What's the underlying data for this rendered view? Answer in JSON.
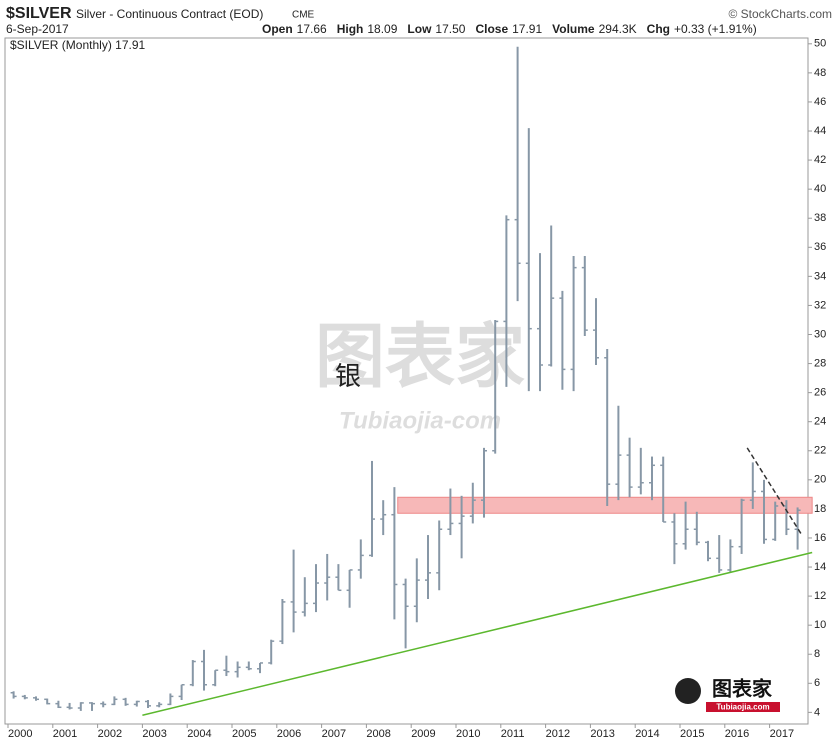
{
  "chart_data": {
    "type": "ohlc",
    "symbol": "$SILVER",
    "title": "Silver - Continuous Contract (EOD)",
    "exchange": "CME",
    "source": "© StockCharts.com",
    "date": "6-Sep-2017",
    "quote": [
      {
        "label": "Open",
        "value": "17.66"
      },
      {
        "label": "High",
        "value": "18.09"
      },
      {
        "label": "Low",
        "value": "17.50"
      },
      {
        "label": "Close",
        "value": "17.91"
      },
      {
        "label": "Volume",
        "value": "294.3K"
      },
      {
        "label": "Chg",
        "value": "+0.33 (+1.91%)"
      }
    ],
    "legend": "$SILVER (Monthly) 17.91",
    "annotation": "银",
    "color": "#8797a6",
    "categories": [
      "2000",
      null,
      null,
      null,
      "2001",
      null,
      null,
      null,
      "2002",
      null,
      null,
      null,
      "2003",
      null,
      null,
      null,
      "2004",
      null,
      null,
      null,
      "2005",
      null,
      null,
      null,
      "2006",
      null,
      null,
      null,
      "2007",
      null,
      null,
      null,
      "2008",
      null,
      null,
      null,
      "2009",
      null,
      null,
      null,
      "2010",
      null,
      null,
      null,
      "2011",
      null,
      null,
      null,
      "2012",
      null,
      null,
      null,
      "2013",
      null,
      null,
      null,
      "2014",
      null,
      null,
      null,
      "2015",
      null,
      null,
      null,
      "2016",
      null,
      null,
      null,
      "2017",
      null,
      null
    ],
    "open": [
      5.35,
      5.1,
      5.0,
      4.9,
      4.6,
      4.35,
      4.3,
      4.65,
      4.6,
      4.55,
      4.9,
      4.55,
      4.75,
      4.45,
      4.55,
      5.1,
      5.9,
      7.5,
      5.9,
      6.9,
      6.8,
      7.1,
      7.0,
      7.4,
      8.9,
      11.6,
      10.9,
      11.5,
      12.9,
      13.3,
      12.4,
      13.8,
      14.8,
      17.3,
      17.6,
      12.8,
      11.3,
      13.1,
      13.6,
      16.6,
      17.0,
      17.5,
      18.6,
      22.0,
      30.9,
      37.9,
      34.9,
      30.4,
      27.9,
      32.5,
      27.6,
      34.6,
      30.3,
      28.4,
      19.7,
      21.7,
      19.5,
      19.8,
      21.0,
      17.1,
      15.6,
      16.6,
      15.7,
      14.6,
      13.8,
      15.4,
      18.6,
      19.2,
      15.9,
      18.2,
      16.6
    ],
    "high": [
      5.45,
      5.2,
      5.1,
      4.95,
      4.8,
      4.65,
      4.7,
      4.7,
      4.75,
      5.1,
      5.0,
      4.8,
      4.85,
      4.7,
      5.3,
      5.9,
      7.6,
      8.3,
      6.9,
      7.9,
      7.5,
      7.5,
      7.4,
      9.0,
      11.8,
      15.2,
      13.3,
      14.2,
      14.9,
      14.2,
      13.8,
      15.9,
      21.3,
      18.6,
      19.5,
      13.2,
      14.6,
      16.2,
      17.2,
      19.4,
      18.9,
      19.8,
      22.2,
      31.0,
      38.2,
      49.8,
      44.2,
      35.6,
      37.5,
      33.0,
      35.4,
      35.4,
      32.5,
      29.0,
      25.1,
      22.9,
      22.2,
      21.6,
      21.6,
      17.7,
      18.5,
      17.8,
      15.8,
      16.2,
      15.9,
      18.7,
      21.2,
      20.0,
      18.5,
      18.6,
      18.1
    ],
    "low": [
      4.95,
      4.9,
      4.8,
      4.55,
      4.3,
      4.2,
      4.1,
      4.1,
      4.35,
      4.5,
      4.45,
      4.4,
      4.3,
      4.35,
      4.5,
      4.85,
      5.8,
      5.5,
      5.8,
      6.5,
      6.4,
      6.9,
      6.7,
      7.3,
      8.7,
      9.5,
      10.6,
      10.9,
      11.7,
      12.4,
      11.2,
      13.2,
      14.7,
      16.2,
      10.4,
      8.4,
      10.2,
      11.8,
      12.4,
      16.2,
      14.6,
      17.0,
      17.4,
      21.8,
      26.4,
      32.3,
      26.1,
      26.1,
      27.8,
      26.2,
      26.1,
      29.9,
      27.9,
      18.2,
      18.6,
      18.8,
      19.0,
      18.6,
      17.1,
      14.2,
      15.2,
      15.5,
      14.4,
      13.6,
      13.6,
      14.9,
      18.0,
      15.6,
      15.8,
      16.2,
      15.2
    ],
    "close": [
      5.1,
      5.0,
      4.9,
      4.6,
      4.35,
      4.3,
      4.65,
      4.6,
      4.55,
      4.9,
      4.55,
      4.75,
      4.45,
      4.55,
      5.1,
      5.9,
      7.5,
      5.9,
      6.9,
      6.8,
      7.1,
      7.0,
      7.4,
      8.9,
      11.6,
      10.9,
      11.5,
      12.9,
      13.3,
      12.4,
      13.8,
      14.8,
      17.3,
      17.6,
      12.8,
      11.3,
      13.1,
      13.6,
      16.6,
      17.0,
      17.5,
      18.6,
      22.0,
      30.9,
      37.9,
      34.9,
      30.4,
      27.9,
      32.5,
      27.6,
      34.6,
      30.3,
      28.4,
      19.7,
      21.7,
      19.5,
      19.8,
      21.0,
      17.1,
      15.6,
      16.6,
      15.7,
      14.6,
      13.8,
      15.4,
      18.6,
      19.2,
      15.9,
      18.2,
      16.6,
      17.91
    ],
    "ylim": [
      3.2,
      50.4
    ],
    "yticks": [
      4,
      6,
      8,
      10,
      12,
      14,
      16,
      18,
      20,
      22,
      24,
      26,
      28,
      30,
      32,
      34,
      36,
      38,
      40,
      42,
      44,
      46,
      48,
      50
    ],
    "grid": false,
    "zone": {
      "x": [
        2008.7,
        2017.95
      ],
      "y": [
        17.7,
        18.8
      ],
      "color": "#f7b8b8"
    },
    "trendlines": [
      {
        "x": [
          2003.0,
          2017.95
        ],
        "y": [
          3.8,
          15.0
        ],
        "color": "#5cb82e",
        "dash": false
      },
      {
        "x": [
          2016.5,
          2017.7
        ],
        "y": [
          22.2,
          16.3
        ],
        "color": "#333333",
        "dash": true
      }
    ]
  },
  "watermark": {
    "text": "图表家",
    "url": "Tubiaojia-com"
  },
  "logo": {
    "text": "图表家",
    "url": "Tubiaojia.com"
  }
}
